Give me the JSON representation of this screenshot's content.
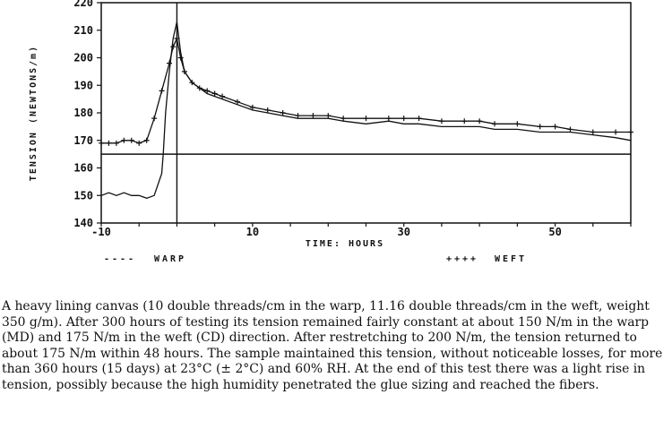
{
  "chart_data": {
    "type": "line",
    "xlabel": "TIME: HOURS",
    "ylabel": "TENSION (NEWTONS/m)",
    "xlim": [
      -10,
      60
    ],
    "ylim": [
      140,
      220
    ],
    "x_ticks": [
      -10,
      10,
      30,
      50
    ],
    "y_ticks": [
      140,
      150,
      160,
      170,
      180,
      190,
      200,
      210,
      220
    ],
    "reference_lines": {
      "vertical_x": 0,
      "horizontal_y": 165
    },
    "grid": false,
    "legend_position": "bottom",
    "series": [
      {
        "name": "WARP",
        "legend_symbol": "----",
        "marker": "none",
        "x": [
          -10,
          -9,
          -8,
          -7,
          -6,
          -5,
          -4,
          -3,
          -2,
          -1.8,
          -1.5,
          -1,
          -0.5,
          0,
          0.5,
          1,
          2,
          3,
          4,
          5,
          6,
          8,
          10,
          12,
          14,
          16,
          18,
          20,
          22,
          25,
          28,
          30,
          32,
          35,
          38,
          40,
          42,
          45,
          48,
          50,
          52,
          55,
          58,
          60
        ],
        "values": [
          150,
          151,
          150,
          151,
          150,
          150,
          149,
          150,
          158,
          165,
          180,
          195,
          207,
          213,
          202,
          195,
          191,
          189,
          187,
          186,
          185,
          183,
          181,
          180,
          179,
          178,
          178,
          178,
          177,
          176,
          177,
          176,
          176,
          175,
          175,
          175,
          174,
          174,
          173,
          173,
          173,
          172,
          171,
          170
        ]
      },
      {
        "name": "WEFT",
        "legend_symbol": "++++",
        "marker": "plus",
        "x": [
          -10,
          -9,
          -8,
          -7,
          -6,
          -5,
          -4,
          -3,
          -2,
          -1,
          -0.5,
          0,
          0.5,
          1,
          2,
          3,
          4,
          5,
          6,
          8,
          10,
          12,
          14,
          16,
          18,
          20,
          22,
          25,
          28,
          30,
          32,
          35,
          38,
          40,
          42,
          45,
          48,
          50,
          52,
          55,
          58,
          60
        ],
        "values": [
          169,
          169,
          169,
          170,
          170,
          169,
          170,
          178,
          188,
          198,
          204,
          207,
          200,
          195,
          191,
          189,
          188,
          187,
          186,
          184,
          182,
          181,
          180,
          179,
          179,
          179,
          178,
          178,
          178,
          178,
          178,
          177,
          177,
          177,
          176,
          176,
          175,
          175,
          174,
          173,
          173,
          173
        ]
      }
    ]
  },
  "caption": "A heavy lining canvas (10 double threads/cm in the warp, 11.16 double threads/cm in the weft, weight 350 g/m). After  300 hours of testing its tension remained fairly constant at about 150 N/m in the warp (MD) and 175 N/m in the weft (CD) direction. After restretching to 200 N/m, the tension returned to about 175 N/m within 48 hours. The sample maintained this tension, without noticeable losses, for more than 360 hours (15 days) at 23°C (± 2°C) and 60% RH. At the end of this test there was a light rise in tension, possibly because the high humidity penetrated the glue sizing and reached the fibers."
}
